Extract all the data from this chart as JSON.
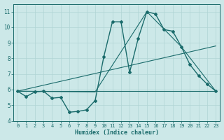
{
  "xlabel": "Humidex (Indice chaleur)",
  "bg_color": "#cce8e8",
  "grid_color": "#b0d4d4",
  "line_color": "#1a6b6b",
  "xlim": [
    -0.5,
    23.5
  ],
  "ylim": [
    4,
    11.5
  ],
  "yticks": [
    4,
    5,
    6,
    7,
    8,
    9,
    10,
    11
  ],
  "xticks": [
    0,
    1,
    2,
    3,
    4,
    5,
    6,
    7,
    8,
    9,
    10,
    11,
    12,
    13,
    14,
    15,
    16,
    17,
    18,
    19,
    20,
    21,
    22,
    23
  ],
  "main_x": [
    0,
    1,
    2,
    3,
    4,
    5,
    6,
    7,
    8,
    9,
    10,
    11,
    12,
    13,
    14,
    15,
    16,
    17,
    18,
    19,
    20,
    21,
    22,
    23
  ],
  "main_y": [
    5.9,
    5.55,
    5.85,
    5.9,
    5.45,
    5.5,
    4.55,
    4.6,
    4.7,
    5.3,
    8.1,
    10.35,
    10.35,
    7.1,
    9.3,
    11.0,
    10.85,
    9.85,
    9.75,
    8.75,
    7.6,
    6.9,
    6.35,
    5.9
  ],
  "line1_x": [
    0,
    23
  ],
  "line1_y": [
    5.9,
    5.9
  ],
  "line2_x": [
    0,
    23
  ],
  "line2_y": [
    5.9,
    8.8
  ],
  "line3_x": [
    0,
    9,
    15,
    19,
    23
  ],
  "line3_y": [
    5.9,
    5.85,
    11.0,
    8.75,
    5.9
  ]
}
